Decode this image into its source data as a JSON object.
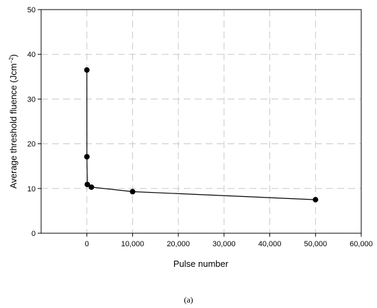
{
  "chart_data": {
    "type": "line",
    "x": [
      1,
      10,
      100,
      1000,
      10000,
      50000
    ],
    "series": [
      {
        "name": "Average threshold fluence",
        "color": "#000000",
        "values": [
          36.5,
          17.1,
          10.9,
          10.3,
          9.3,
          7.5
        ]
      }
    ],
    "xlabel": "Pulse number",
    "ylabel": [
      "Average threshold fluence (Jcm",
      "−2",
      ")"
    ],
    "caption": "(a)",
    "xlim": [
      -10000,
      60000
    ],
    "xticks": [
      0,
      {
        "value": 10000,
        "label": "10,000"
      },
      {
        "value": 20000,
        "label": "20,000"
      },
      {
        "value": 30000,
        "label": "30,000"
      },
      {
        "value": 40000,
        "label": "40,000"
      },
      {
        "value": 50000,
        "label": "50,000"
      },
      {
        "value": 60000,
        "label": "60,000"
      }
    ],
    "ylim": [
      0,
      50
    ],
    "yticks": [
      0,
      10,
      20,
      30,
      40,
      50
    ],
    "grid": true,
    "markers": true
  }
}
